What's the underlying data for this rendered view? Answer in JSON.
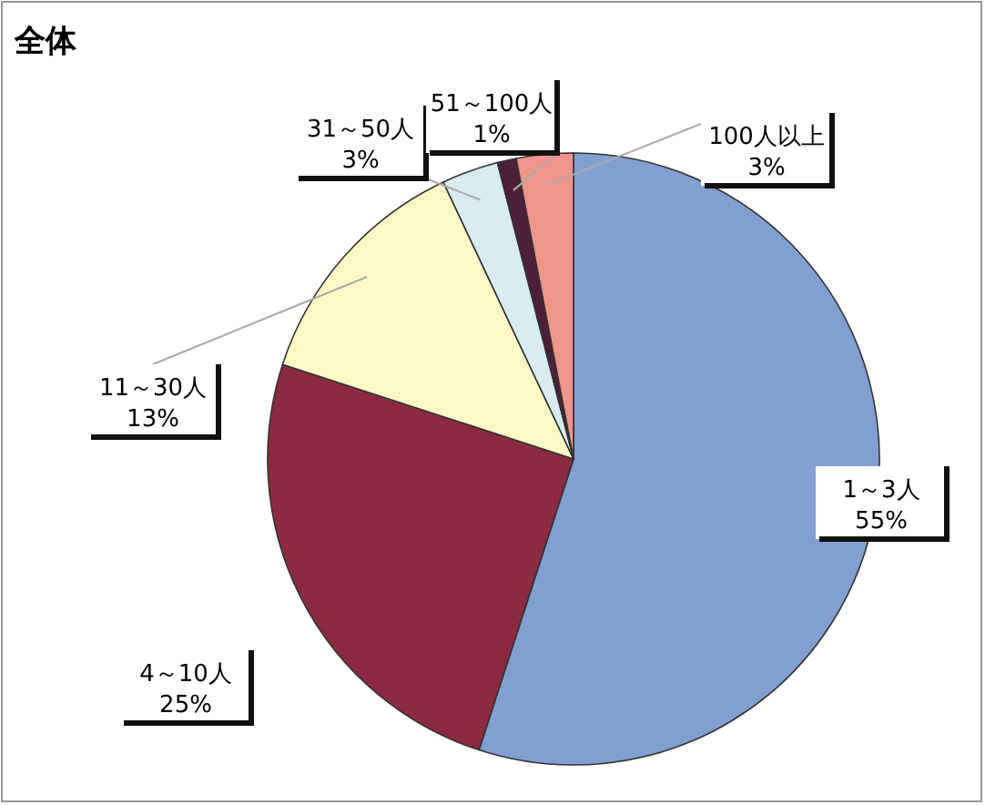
{
  "chart_data": {
    "type": "pie",
    "title": "全体",
    "categories": [
      "1～3人",
      "4～10人",
      "11～30人",
      "31～50人",
      "51～100人",
      "100人以上"
    ],
    "values": [
      55,
      25,
      13,
      3,
      1,
      3
    ],
    "colors": [
      "#819fd0",
      "#8c2b40",
      "#fbf8c6",
      "#d6ecef",
      "#4d1f38",
      "#f0958c"
    ],
    "value_labels": [
      "55%",
      "25%",
      "13%",
      "3%",
      "1%",
      "3%"
    ]
  }
}
